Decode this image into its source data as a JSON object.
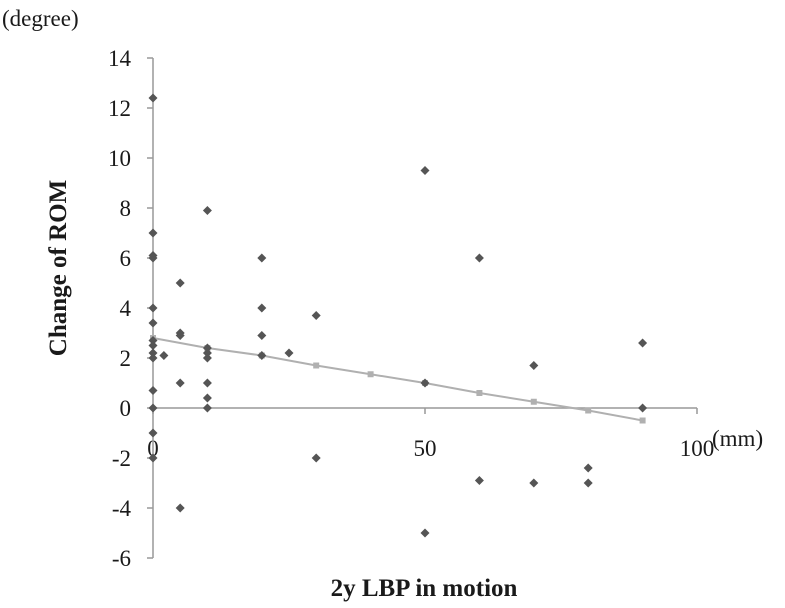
{
  "chart_data": {
    "type": "scatter",
    "xlabel": "2y LBP in motion",
    "ylabel": "Change of ROM",
    "x_unit": "(mm)",
    "y_unit": "(degree)",
    "xlim": [
      0,
      100
    ],
    "ylim": [
      -6,
      14
    ],
    "x_ticks": [
      "0",
      "50",
      "100"
    ],
    "y_ticks": [
      "-6",
      "-4",
      "-2",
      "0",
      "2",
      "4",
      "6",
      "8",
      "10",
      "12",
      "14"
    ],
    "grid": false,
    "legend": "none",
    "colors": {
      "points": "#555555",
      "trend": "#b0b0b0",
      "axis": "#999999"
    },
    "series": [
      {
        "points": [
          [
            0,
            12.4
          ],
          [
            0,
            7.0
          ],
          [
            0,
            6.1
          ],
          [
            0,
            6.0
          ],
          [
            0,
            4.0
          ],
          [
            0,
            3.4
          ],
          [
            0,
            2.7
          ],
          [
            0,
            2.5
          ],
          [
            0,
            2.2
          ],
          [
            0,
            2.0
          ],
          [
            0,
            0.7
          ],
          [
            0,
            0.0
          ],
          [
            0,
            -1.0
          ],
          [
            0,
            -2.0
          ],
          [
            2,
            2.1
          ],
          [
            5,
            5.0
          ],
          [
            5,
            3.0
          ],
          [
            5,
            2.9
          ],
          [
            5,
            1.0
          ],
          [
            5,
            -4.0
          ],
          [
            10,
            7.9
          ],
          [
            10,
            2.4
          ],
          [
            10,
            2.2
          ],
          [
            10,
            2.0
          ],
          [
            10,
            1.0
          ],
          [
            10,
            0.4
          ],
          [
            10,
            0.0
          ],
          [
            20,
            6.0
          ],
          [
            20,
            4.0
          ],
          [
            20,
            2.9
          ],
          [
            20,
            2.1
          ],
          [
            25,
            2.2
          ],
          [
            30,
            3.7
          ],
          [
            30,
            -2.0
          ],
          [
            50,
            9.5
          ],
          [
            50,
            1.0
          ],
          [
            50,
            -5.0
          ],
          [
            60,
            6.0
          ],
          [
            60,
            -2.9
          ],
          [
            70,
            1.7
          ],
          [
            70,
            -3.0
          ],
          [
            80,
            -2.4
          ],
          [
            80,
            -3.0
          ],
          [
            90,
            2.6
          ],
          [
            90,
            0.0
          ]
        ]
      },
      {
        "type": "line",
        "points": [
          [
            0,
            2.8
          ],
          [
            10,
            2.4
          ],
          [
            20,
            2.1
          ],
          [
            30,
            1.7
          ],
          [
            40,
            1.35
          ],
          [
            50,
            1.0
          ],
          [
            60,
            0.6
          ],
          [
            70,
            0.25
          ],
          [
            80,
            -0.1
          ],
          [
            90,
            -0.5
          ]
        ]
      }
    ]
  }
}
